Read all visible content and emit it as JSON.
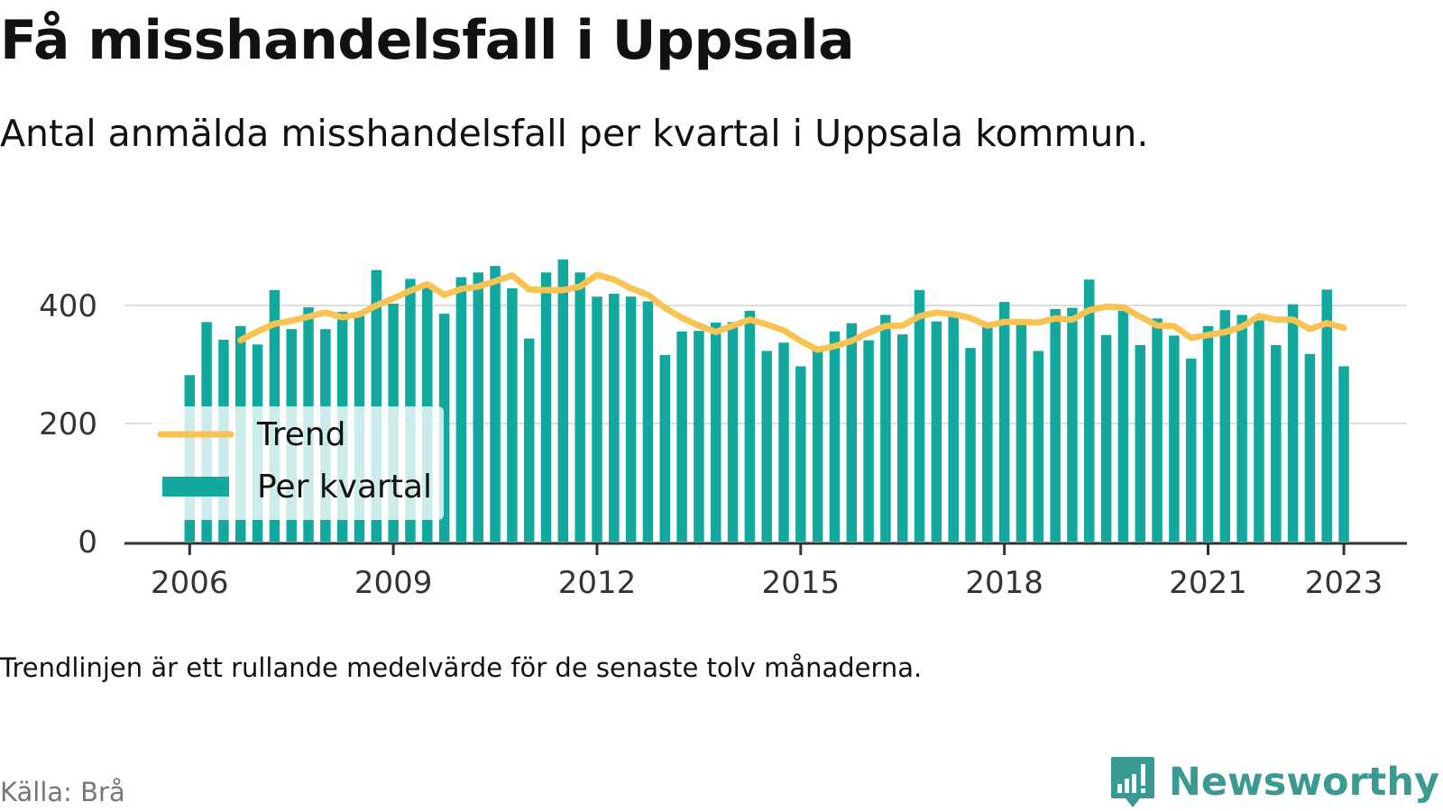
{
  "title": "Få misshandelsfall i Uppsala",
  "subtitle": "Antal anmälda misshandelsfall per kvartal i Uppsala kommun.",
  "note": "Trendlinjen är ett rullande medelvärde för de senaste tolv månaderna.",
  "source": "Källa: Brå",
  "brand": {
    "name": "Newsworthy",
    "icon": "newsworthy-logo-icon"
  },
  "colors": {
    "bars": "#13a89e",
    "trend": "#f9c354",
    "axis": "#333333",
    "grid": "#dddddd"
  },
  "chart_data": {
    "type": "bar",
    "x_start": "2006 Q1",
    "x_tick_labels": [
      "2006",
      "2009",
      "2012",
      "2015",
      "2018",
      "2021",
      "2023"
    ],
    "y_ticks": [
      0,
      200,
      400
    ],
    "ylim": [
      0,
      480
    ],
    "grid": true,
    "legend": {
      "position": "bottom-left",
      "entries": [
        "Trend",
        "Per kvartal"
      ]
    },
    "series": [
      {
        "name": "Per kvartal",
        "type": "bar",
        "values": [
          282,
          372,
          342,
          365,
          334,
          426,
          360,
          397,
          360,
          389,
          382,
          460,
          403,
          445,
          438,
          386,
          448,
          456,
          467,
          429,
          344,
          456,
          478,
          456,
          415,
          420,
          415,
          407,
          316,
          356,
          357,
          371,
          372,
          391,
          323,
          337,
          297,
          326,
          356,
          370,
          341,
          384,
          351,
          426,
          373,
          387,
          328,
          365,
          406,
          377,
          323,
          394,
          396,
          444,
          350,
          391,
          333,
          378,
          349,
          310,
          365,
          392,
          384,
          375,
          333,
          402,
          318,
          427,
          297
        ]
      },
      {
        "name": "Trend",
        "type": "line",
        "values": [
          null,
          null,
          null,
          341,
          356,
          369,
          374,
          381,
          388,
          380,
          385,
          400,
          412,
          425,
          436,
          418,
          428,
          432,
          441,
          451,
          427,
          426,
          426,
          432,
          452,
          444,
          429,
          418,
          396,
          379,
          366,
          355,
          366,
          376,
          368,
          358,
          340,
          325,
          331,
          340,
          354,
          365,
          366,
          382,
          388,
          385,
          379,
          366,
          372,
          372,
          371,
          378,
          376,
          392,
          398,
          397,
          381,
          366,
          365,
          345,
          350,
          355,
          364,
          382,
          376,
          376,
          360,
          370,
          362
        ]
      }
    ]
  }
}
